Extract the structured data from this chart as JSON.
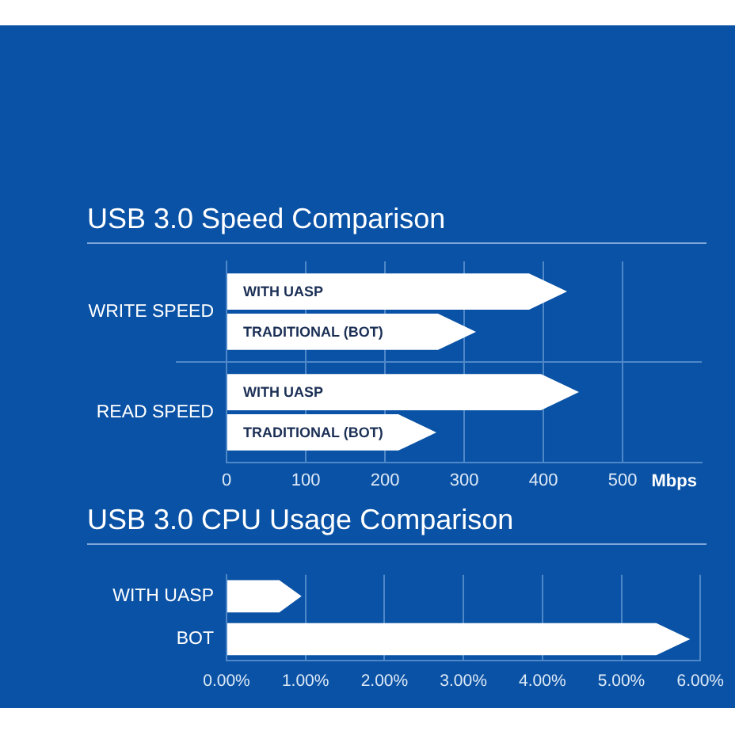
{
  "chart_data": [
    {
      "type": "bar",
      "title": "USB 3.0 Speed Comparison",
      "orientation": "horizontal",
      "categories": [
        "WRITE SPEED",
        "READ SPEED"
      ],
      "series": [
        {
          "name": "WITH UASP",
          "color": "#ffffff",
          "values": [
            430,
            445
          ]
        },
        {
          "name": "TRADITIONAL (BOT)",
          "color": "#ffffff",
          "values": [
            315,
            265
          ]
        }
      ],
      "xlabel": "Mbps",
      "xlim": [
        0,
        600
      ],
      "xticks": [
        0,
        100,
        200,
        300,
        400,
        500
      ],
      "grid": true
    },
    {
      "type": "bar",
      "title": "USB 3.0 CPU Usage Comparison",
      "orientation": "horizontal",
      "categories": [
        "WITH UASP",
        "BOT"
      ],
      "values": [
        0.95,
        5.87
      ],
      "color": "#ffffff",
      "xlim": [
        0,
        6
      ],
      "xticks": [
        {
          "value": 0,
          "label": "0.00%"
        },
        {
          "value": 1,
          "label": "1.00%"
        },
        {
          "value": 2,
          "label": "2.00%"
        },
        {
          "value": 3,
          "label": "3.00%"
        },
        {
          "value": 4,
          "label": "4.00%"
        },
        {
          "value": 5,
          "label": "5.00%"
        },
        {
          "value": 6,
          "label": "6.00%"
        }
      ],
      "grid": "x"
    }
  ]
}
